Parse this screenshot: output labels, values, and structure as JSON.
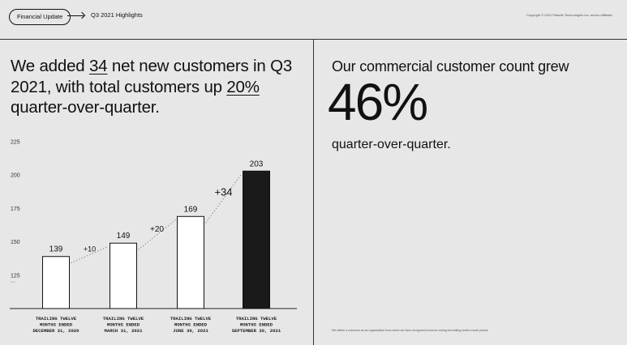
{
  "header": {
    "pill_label": "Financial Update",
    "breadcrumb": "Q3 2021 Highlights",
    "copyright": "Copyright © 2021 Palantir Technologies Inc. and/or affiliates"
  },
  "left": {
    "headline_parts": [
      "We added ",
      "34",
      " net new customers in Q3 2021, with total customers up ",
      "20%",
      " quarter-over-quarter."
    ]
  },
  "right": {
    "headline": "Our commercial customer count grew",
    "big_number": "46%",
    "subtext": "quarter-over-quarter.",
    "footnote": "We define a customer as an organization from which we have recognized revenue during the trailing twelve month period."
  },
  "colors": {
    "bar_fill_normal": "#ffffff",
    "bar_fill_highlight": "#1a1a1a",
    "background": "#e7e7e7"
  },
  "chart_data": {
    "type": "bar",
    "title": "",
    "xlabel": "",
    "ylabel": "",
    "categories": [
      [
        "TRAILING TWELVE",
        "MONTHS ENDED",
        "DECEMBER 31, 2020"
      ],
      [
        "TRAILING TWELVE",
        "MONTHS ENDED",
        "MARCH 31, 2021"
      ],
      [
        "TRAILING TWELVE",
        "MONTHS ENDED",
        "JUNE 30, 2021"
      ],
      [
        "TRAILING TWELVE",
        "MONTHS ENDED",
        "SEPTEMBER 30, 2021"
      ]
    ],
    "values": [
      139,
      149,
      169,
      203
    ],
    "value_labels": [
      "139",
      "149",
      "169",
      "203"
    ],
    "highlight_index": 3,
    "deltas": [
      "+10",
      "+20",
      "+34"
    ],
    "yticks": [
      "225",
      "200",
      "175",
      "150",
      "125",
      "..."
    ],
    "ytick_values": [
      225,
      200,
      175,
      150,
      125
    ],
    "ylim_display": [
      100,
      225
    ]
  }
}
